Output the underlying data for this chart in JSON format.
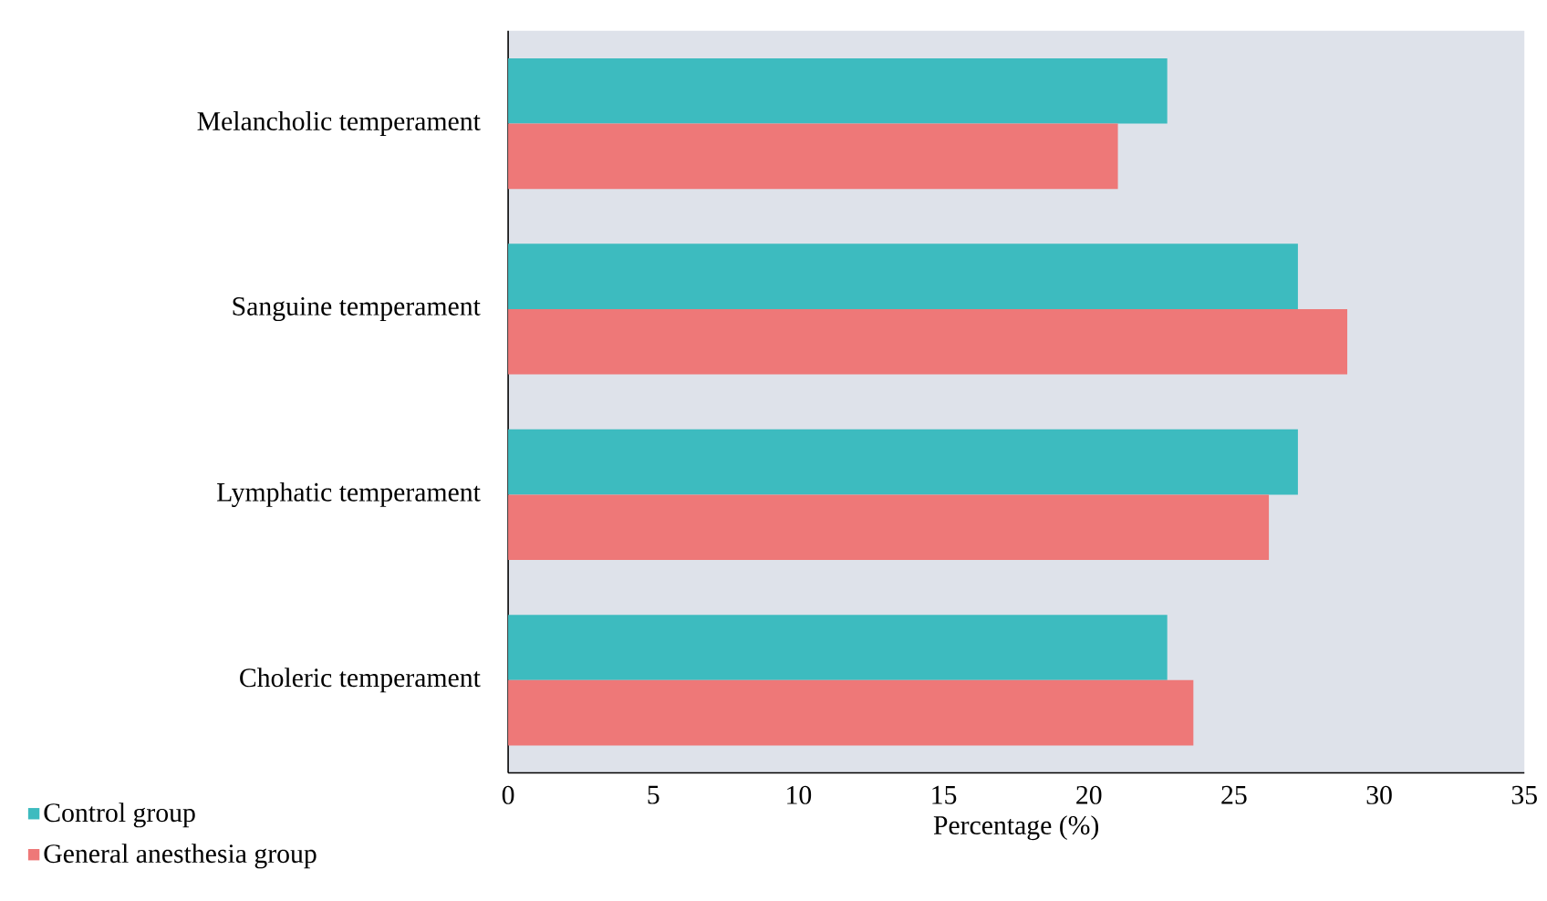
{
  "chart_data": {
    "type": "bar",
    "orientation": "horizontal",
    "xlabel": "Percentage (%)",
    "categories": [
      "Melancholic temperament",
      "Sanguine temperament",
      "Lymphatic temperament",
      "Choleric temperament"
    ],
    "series": [
      {
        "name": "Control group",
        "color": "#3dbbbf",
        "values": [
          22.7,
          27.2,
          27.2,
          22.7
        ]
      },
      {
        "name": "General anesthesia group",
        "color": "#ee7878",
        "values": [
          21.0,
          28.9,
          26.2,
          23.6
        ]
      }
    ],
    "xlim": [
      0,
      35
    ],
    "xticks": [
      0,
      5,
      10,
      15,
      20,
      25,
      30,
      35
    ],
    "grid": false,
    "legend": "bottom left"
  }
}
